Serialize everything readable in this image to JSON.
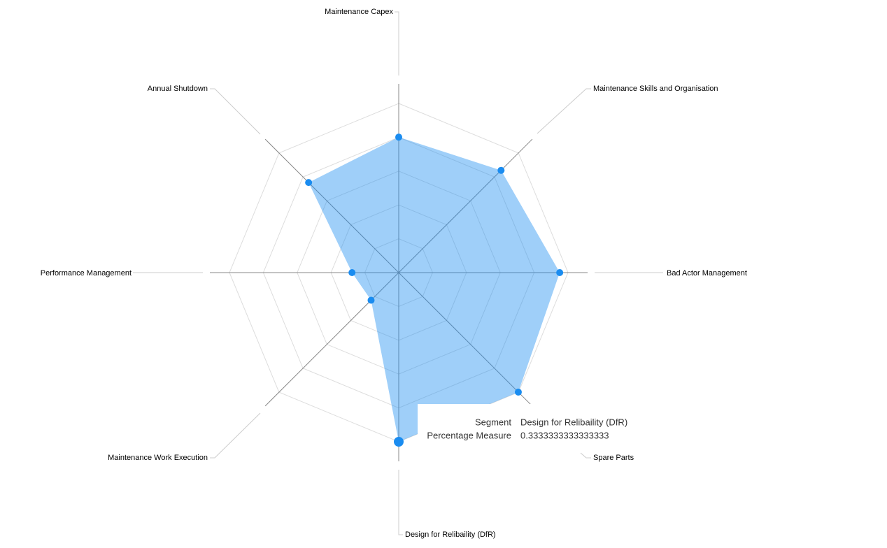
{
  "chart_data": {
    "type": "radar",
    "categories": [
      "Maintenance Capex",
      "Maintenance Skills and Organisation",
      "Bad Actor Management",
      "Spare Parts",
      "Design for Relibaility (DfR)",
      "Maintenance Work Execution",
      "Performance Management",
      "Annual Shutdown"
    ],
    "series": [
      {
        "name": "Percentage Measure",
        "color": "#1a8cf0",
        "values": [
          0.267,
          0.285,
          0.317,
          0.333,
          0.3333333333333333,
          0.077,
          0.092,
          0.251
        ]
      }
    ],
    "ylim": [
      0,
      0.3333333333333333
    ],
    "tooltip": {
      "segment_label": "Segment",
      "measure_label": "Percentage Measure"
    }
  }
}
